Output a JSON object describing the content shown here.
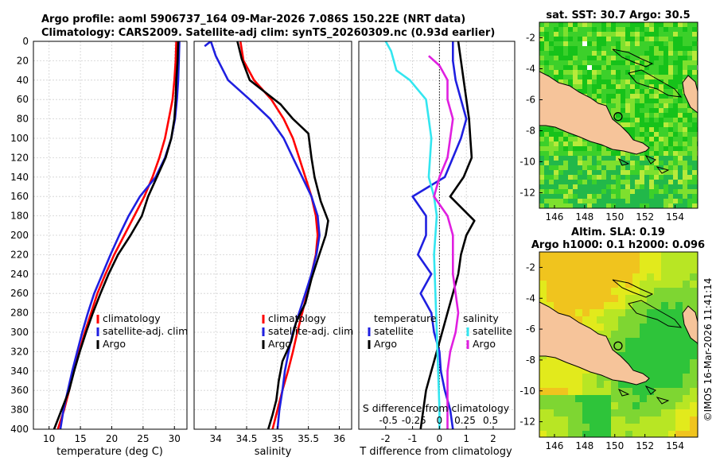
{
  "header": {
    "line1": "Argo profile: aoml 5906737_164 09-Mar-2026 7.086S 150.22E (NRT data)",
    "line2": "Climatology: CARS2009. Satellite-adj clim: synTS_20260309.nc (0.93d earlier)"
  },
  "colors": {
    "climatology": "#ff0000",
    "satellite": "#1f1fe0",
    "argo": "#000000",
    "sal_satellite": "#33e6f0",
    "sal_argo": "#e01fe0",
    "land": "#f6c49a"
  },
  "chart_data": [
    {
      "type": "line",
      "id": "temperature",
      "xlabel": "temperature (deg C)",
      "ylabel": "",
      "xlim": [
        7.5,
        32
      ],
      "ylim": [
        400,
        0
      ],
      "xticks": [
        10,
        15,
        20,
        25,
        30
      ],
      "yticks": [
        0,
        20,
        40,
        60,
        80,
        100,
        120,
        140,
        160,
        180,
        200,
        220,
        240,
        260,
        280,
        300,
        320,
        340,
        360,
        380,
        400
      ],
      "grid": true,
      "legend": {
        "position": "bottom-right",
        "labels": [
          "climatology",
          "satellite-adj. clim",
          "Argo"
        ]
      },
      "series": [
        {
          "name": "climatology",
          "color": "#ff0000",
          "points": [
            [
              30.3,
              0
            ],
            [
              30.2,
              20
            ],
            [
              30.0,
              40
            ],
            [
              29.7,
              60
            ],
            [
              29.1,
              80
            ],
            [
              28.5,
              100
            ],
            [
              27.6,
              120
            ],
            [
              26.5,
              140
            ],
            [
              25.2,
              160
            ],
            [
              23.6,
              180
            ],
            [
              22.0,
              200
            ],
            [
              20.4,
              220
            ],
            [
              19.0,
              240
            ],
            [
              17.7,
              260
            ],
            [
              16.7,
              280
            ],
            [
              15.7,
              300
            ],
            [
              14.8,
              320
            ],
            [
              13.9,
              340
            ],
            [
              13.2,
              360
            ],
            [
              12.4,
              380
            ],
            [
              11.4,
              400
            ]
          ]
        },
        {
          "name": "satellite-adj. clim",
          "color": "#1f1fe0",
          "points": [
            [
              30.8,
              0
            ],
            [
              30.7,
              20
            ],
            [
              30.6,
              40
            ],
            [
              30.4,
              60
            ],
            [
              30.1,
              80
            ],
            [
              29.5,
              100
            ],
            [
              28.5,
              120
            ],
            [
              27.0,
              140
            ],
            [
              24.5,
              160
            ],
            [
              22.7,
              180
            ],
            [
              21.2,
              200
            ],
            [
              19.8,
              220
            ],
            [
              18.5,
              240
            ],
            [
              17.2,
              260
            ],
            [
              16.2,
              280
            ],
            [
              15.3,
              300
            ],
            [
              14.5,
              320
            ],
            [
              13.7,
              340
            ],
            [
              13.0,
              360
            ],
            [
              12.3,
              380
            ],
            [
              11.8,
              400
            ]
          ]
        },
        {
          "name": "Argo",
          "color": "#000000",
          "points": [
            [
              30.6,
              0
            ],
            [
              30.5,
              20
            ],
            [
              30.3,
              40
            ],
            [
              30.2,
              60
            ],
            [
              30.0,
              80
            ],
            [
              29.5,
              100
            ],
            [
              28.6,
              120
            ],
            [
              27.2,
              140
            ],
            [
              25.8,
              160
            ],
            [
              24.8,
              180
            ],
            [
              23.0,
              200
            ],
            [
              21.0,
              220
            ],
            [
              19.5,
              240
            ],
            [
              18.2,
              260
            ],
            [
              17.0,
              280
            ],
            [
              15.9,
              300
            ],
            [
              14.9,
              320
            ],
            [
              14.0,
              340
            ],
            [
              13.2,
              360
            ],
            [
              12.0,
              380
            ],
            [
              10.8,
              400
            ]
          ]
        }
      ]
    },
    {
      "type": "line",
      "id": "salinity",
      "xlabel": "salinity",
      "ylabel": "",
      "xlim": [
        33.65,
        36.2
      ],
      "ylim": [
        400,
        0
      ],
      "xticks": [
        34,
        34.5,
        35,
        35.5,
        36
      ],
      "xticklabels": [
        "34",
        "34.5",
        "35",
        "35.5",
        "36"
      ],
      "grid": true,
      "legend": {
        "position": "bottom-right",
        "labels": [
          "climatology",
          "satellite-adj. clim",
          "Argo"
        ]
      },
      "series": [
        {
          "name": "climatology",
          "color": "#ff0000",
          "points": [
            [
              34.4,
              0
            ],
            [
              34.45,
              20
            ],
            [
              34.62,
              40
            ],
            [
              34.9,
              60
            ],
            [
              35.1,
              80
            ],
            [
              35.25,
              100
            ],
            [
              35.35,
              120
            ],
            [
              35.45,
              140
            ],
            [
              35.55,
              160
            ],
            [
              35.62,
              180
            ],
            [
              35.65,
              200
            ],
            [
              35.62,
              220
            ],
            [
              35.55,
              240
            ],
            [
              35.48,
              260
            ],
            [
              35.4,
              280
            ],
            [
              35.32,
              300
            ],
            [
              35.25,
              320
            ],
            [
              35.17,
              340
            ],
            [
              35.08,
              360
            ],
            [
              35.0,
              380
            ],
            [
              34.92,
              400
            ]
          ]
        },
        {
          "name": "satellite-adj. clim",
          "color": "#1f1fe0",
          "points": [
            [
              33.82,
              5
            ],
            [
              33.92,
              0
            ],
            [
              34.0,
              15
            ],
            [
              34.2,
              40
            ],
            [
              34.55,
              60
            ],
            [
              34.88,
              80
            ],
            [
              35.1,
              100
            ],
            [
              35.25,
              120
            ],
            [
              35.4,
              140
            ],
            [
              35.55,
              160
            ],
            [
              35.65,
              180
            ],
            [
              35.68,
              200
            ],
            [
              35.63,
              220
            ],
            [
              35.55,
              240
            ],
            [
              35.45,
              260
            ],
            [
              35.35,
              280
            ],
            [
              35.25,
              300
            ],
            [
              35.18,
              320
            ],
            [
              35.12,
              340
            ],
            [
              35.08,
              360
            ],
            [
              35.03,
              380
            ],
            [
              35.0,
              400
            ]
          ]
        },
        {
          "name": "Argo",
          "color": "#000000",
          "points": [
            [
              34.35,
              0
            ],
            [
              34.42,
              18
            ],
            [
              34.55,
              40
            ],
            [
              34.85,
              55
            ],
            [
              35.05,
              65
            ],
            [
              35.25,
              80
            ],
            [
              35.5,
              95
            ],
            [
              35.55,
              120
            ],
            [
              35.6,
              140
            ],
            [
              35.7,
              165
            ],
            [
              35.82,
              185
            ],
            [
              35.78,
              200
            ],
            [
              35.65,
              225
            ],
            [
              35.55,
              245
            ],
            [
              35.45,
              270
            ],
            [
              35.3,
              290
            ],
            [
              35.22,
              310
            ],
            [
              35.08,
              330
            ],
            [
              35.02,
              350
            ],
            [
              34.98,
              370
            ],
            [
              34.92,
              385
            ],
            [
              34.85,
              400
            ]
          ]
        }
      ]
    },
    {
      "type": "line",
      "id": "difference",
      "xlabel": "T difference from climatology",
      "top_label": "S difference from climatology",
      "xlim": [
        -3.0,
        2.8
      ],
      "ylim": [
        400,
        0
      ],
      "xticks": [
        -2,
        -1,
        0,
        1,
        2
      ],
      "xticklabels": [
        "-2",
        "-1",
        "0",
        "1",
        "2"
      ],
      "top_ticklabels": [
        "-0.5",
        "-0.25",
        "0",
        "0.25",
        "0.5"
      ],
      "zero_line": "dotted",
      "grid": true,
      "legend": {
        "left_title": "temperature",
        "right_title": "salinity",
        "left_labels": [
          "satellite",
          "Argo"
        ],
        "right_labels": [
          "satellite",
          "Argo"
        ]
      },
      "series": [
        {
          "name": "T satellite",
          "color": "#1f1fe0",
          "points": [
            [
              0.5,
              0
            ],
            [
              0.5,
              20
            ],
            [
              0.6,
              40
            ],
            [
              0.8,
              60
            ],
            [
              1.0,
              80
            ],
            [
              0.8,
              100
            ],
            [
              0.5,
              120
            ],
            [
              0.2,
              140
            ],
            [
              -1.0,
              160
            ],
            [
              -0.5,
              180
            ],
            [
              -0.5,
              200
            ],
            [
              -0.8,
              220
            ],
            [
              -0.3,
              240
            ],
            [
              -0.7,
              260
            ],
            [
              -0.3,
              280
            ],
            [
              -0.2,
              300
            ],
            [
              0.0,
              320
            ],
            [
              0.05,
              340
            ],
            [
              0.2,
              360
            ],
            [
              0.4,
              380
            ],
            [
              0.5,
              400
            ]
          ]
        },
        {
          "name": "T Argo",
          "color": "#000000",
          "points": [
            [
              0.7,
              0
            ],
            [
              0.8,
              20
            ],
            [
              0.9,
              40
            ],
            [
              1.0,
              60
            ],
            [
              1.1,
              80
            ],
            [
              1.15,
              100
            ],
            [
              1.2,
              120
            ],
            [
              0.9,
              140
            ],
            [
              0.4,
              160
            ],
            [
              1.3,
              185
            ],
            [
              1.0,
              200
            ],
            [
              0.8,
              220
            ],
            [
              0.7,
              240
            ],
            [
              0.5,
              260
            ],
            [
              0.3,
              280
            ],
            [
              0.1,
              300
            ],
            [
              -0.1,
              320
            ],
            [
              -0.3,
              340
            ],
            [
              -0.5,
              360
            ],
            [
              -0.6,
              380
            ],
            [
              -0.7,
              400
            ]
          ]
        },
        {
          "name": "S satellite",
          "color": "#33e6f0",
          "points": [
            [
              -2.0,
              0
            ],
            [
              -1.8,
              10
            ],
            [
              -1.6,
              30
            ],
            [
              -1.1,
              40
            ],
            [
              -0.5,
              60
            ],
            [
              -0.4,
              80
            ],
            [
              -0.3,
              100
            ],
            [
              -0.4,
              140
            ],
            [
              -0.2,
              160
            ],
            [
              -0.1,
              180
            ],
            [
              -0.2,
              220
            ],
            [
              -0.15,
              260
            ],
            [
              -0.1,
              300
            ],
            [
              -0.05,
              340
            ],
            [
              0.0,
              380
            ],
            [
              0.0,
              400
            ]
          ]
        },
        {
          "name": "S Argo",
          "color": "#e01fe0",
          "points": [
            [
              -0.4,
              15
            ],
            [
              0.0,
              25
            ],
            [
              0.3,
              40
            ],
            [
              0.3,
              60
            ],
            [
              0.5,
              80
            ],
            [
              0.4,
              100
            ],
            [
              0.3,
              120
            ],
            [
              0.0,
              140
            ],
            [
              -0.2,
              160
            ],
            [
              0.3,
              180
            ],
            [
              0.5,
              200
            ],
            [
              0.5,
              220
            ],
            [
              0.5,
              240
            ],
            [
              0.6,
              260
            ],
            [
              0.7,
              280
            ],
            [
              0.6,
              300
            ],
            [
              0.4,
              320
            ],
            [
              0.3,
              340
            ],
            [
              0.3,
              360
            ],
            [
              0.3,
              380
            ],
            [
              0.3,
              400
            ]
          ]
        }
      ]
    },
    {
      "type": "heatmap",
      "id": "sst_map",
      "title": "sat. SST: 30.7 Argo: 30.5",
      "xlim": [
        145,
        155.5
      ],
      "ylim": [
        -13,
        -1
      ],
      "xticks": [
        146,
        148,
        150,
        152,
        154
      ],
      "yticks": [
        -2,
        -4,
        -6,
        -8,
        -10,
        -12
      ],
      "marker": [
        150.22,
        -7.086
      ]
    },
    {
      "type": "heatmap",
      "id": "sla_map",
      "title": "Altim. SLA: 0.19",
      "subtitle": "Argo h1000: 0.1 h2000: 0.096",
      "xlim": [
        145,
        155.5
      ],
      "ylim": [
        -13,
        -1
      ],
      "xticks": [
        146,
        148,
        150,
        152,
        154
      ],
      "yticks": [
        -2,
        -4,
        -6,
        -8,
        -10,
        -12
      ],
      "marker": [
        150.22,
        -7.086
      ]
    }
  ],
  "footer": {
    "stamp": "©IMOS 16-Mar-2026 11:41:14"
  }
}
